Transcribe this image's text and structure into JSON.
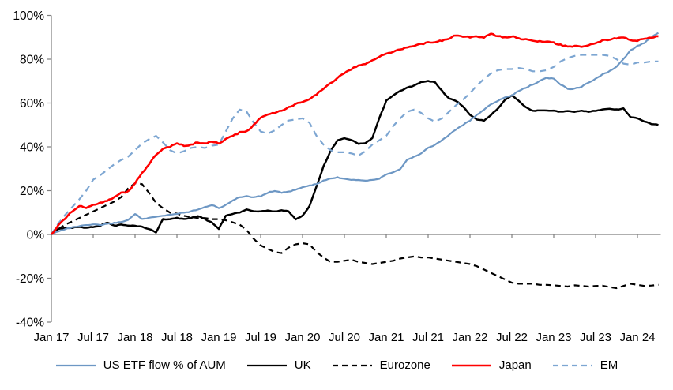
{
  "chart_data": {
    "type": "line",
    "title": "",
    "grid": false,
    "legend_position": "bottom",
    "axis_color": "#7f7f7f",
    "text_color": "#000000",
    "x_axis": {
      "tick_labels": [
        "Jan 17",
        "Jul 17",
        "Jan 18",
        "Jul 18",
        "Jan 19",
        "Jul 19",
        "Jan 20",
        "Jul 20",
        "Jan 21",
        "Jul 21",
        "Jan 22",
        "Jul 22",
        "Jan 23",
        "Jul 23",
        "Jan 24"
      ],
      "months_per_tick": 6,
      "months_total": 88
    },
    "y_axis": {
      "tick_labels": [
        "100%",
        "80%",
        "60%",
        "40%",
        "20%",
        "0%",
        "-20%",
        "-40%"
      ],
      "min": -40,
      "max": 100,
      "step": 20,
      "unit": "%"
    },
    "series": [
      {
        "id": "eurozone",
        "name": "Eurozone",
        "color": "#000000",
        "style": "dashed",
        "values": [
          0,
          2.5,
          4.5,
          6,
          7.5,
          9,
          10.5,
          12,
          13.5,
          15,
          17,
          21,
          23.4,
          23,
          19,
          14.5,
          12,
          10,
          9.5,
          8.5,
          8,
          7.5,
          7.5,
          7,
          7,
          6.5,
          5.5,
          4.5,
          2,
          -2,
          -5,
          -6.5,
          -8,
          -8.5,
          -6,
          -4.5,
          -4,
          -4.5,
          -8,
          -10.5,
          -12.5,
          -12.5,
          -12,
          -11.5,
          -12.5,
          -13,
          -13.5,
          -13,
          -12.5,
          -12,
          -11,
          -10.5,
          -10,
          -10.5,
          -10.5,
          -11,
          -11.5,
          -12,
          -12.5,
          -13,
          -13.5,
          -14.5,
          -16,
          -17.5,
          -19,
          -20.5,
          -22,
          -22.5,
          -22.5,
          -22.5,
          -23,
          -23,
          -23.2,
          -23.5,
          -23.8,
          -23.2,
          -23.5,
          -23.8,
          -23.5,
          -23.4,
          -24,
          -24.5,
          -23.5,
          -22.5,
          -23,
          -23.5,
          -23.3,
          -23
        ]
      },
      {
        "id": "uk",
        "name": "UK",
        "color": "#000000",
        "style": "solid",
        "values": [
          0,
          2.5,
          3,
          3,
          3.5,
          3,
          3.5,
          4,
          5.5,
          4,
          4.5,
          4,
          4,
          3.5,
          2.5,
          1,
          7,
          7,
          7.5,
          7,
          7.5,
          8.5,
          7,
          5.5,
          2.5,
          8.5,
          9.5,
          10,
          11.5,
          10.5,
          10.5,
          11,
          10.5,
          11,
          10.5,
          7,
          8.5,
          13,
          22,
          31,
          38,
          43,
          44,
          43,
          41.5,
          41.5,
          44,
          53,
          61,
          63.5,
          65.5,
          67,
          68,
          69.5,
          70,
          69.5,
          65.5,
          62,
          61,
          58.5,
          54.5,
          52.5,
          52,
          54.5,
          57.5,
          61.5,
          63.5,
          61,
          58,
          56.5,
          56.5,
          56.5,
          56.5,
          56,
          56.5,
          56,
          56.5,
          56,
          56.5,
          57,
          57.5,
          57,
          57.5,
          53.5,
          53,
          51.5,
          50.5,
          50
        ]
      },
      {
        "id": "em",
        "name": "EM",
        "color": "#7da6d2",
        "style": "dashed",
        "values": [
          0,
          5,
          9,
          12.5,
          16,
          20,
          25,
          27,
          29.5,
          32,
          34,
          35.5,
          38.5,
          41.5,
          43.5,
          45,
          42,
          38.5,
          37,
          38,
          39.5,
          40,
          39.5,
          40.5,
          41,
          47,
          53,
          57,
          56,
          51,
          47,
          46,
          47.5,
          50,
          52,
          52.5,
          53,
          51,
          45,
          41,
          38.5,
          37.5,
          37.5,
          37,
          36,
          38,
          41,
          43,
          45,
          49.5,
          53,
          56,
          57,
          55.5,
          53,
          51.5,
          53,
          56,
          59,
          61.5,
          64.5,
          68,
          71,
          73.5,
          75,
          75.5,
          75.5,
          76,
          75.5,
          74.5,
          74.5,
          75,
          76.5,
          79,
          80.5,
          81.5,
          82,
          82,
          82,
          82,
          81.5,
          80,
          78,
          77.5,
          78.5,
          78.5,
          79,
          79
        ]
      },
      {
        "id": "us",
        "name": "US ETF flow % of AUM",
        "color": "#6d97c4",
        "style": "solid",
        "values": [
          0,
          1.5,
          2.5,
          3.2,
          3.8,
          4.2,
          4.5,
          4.3,
          4.8,
          5.2,
          5.8,
          6.5,
          9.5,
          7,
          7.5,
          8,
          8.5,
          9,
          9.5,
          10,
          10.5,
          11.5,
          12.5,
          13.5,
          12,
          13.5,
          15.5,
          17,
          17.5,
          17,
          17.5,
          19,
          20,
          19,
          19.5,
          20.5,
          21.5,
          22.3,
          23,
          24.5,
          25.5,
          26,
          25.5,
          25,
          25,
          24.5,
          25,
          25.5,
          27.5,
          28.5,
          30,
          34,
          35.5,
          37,
          39.5,
          41,
          43,
          45.5,
          48,
          50,
          52,
          54.5,
          57,
          59.5,
          61,
          62.5,
          63.5,
          65.5,
          67,
          68.5,
          70,
          71.5,
          71,
          68.5,
          66.5,
          66.5,
          67.5,
          69.5,
          71,
          73,
          74.5,
          76.5,
          80,
          84,
          86,
          87.5,
          90,
          92
        ]
      },
      {
        "id": "japan",
        "name": "Japan",
        "color": "#ff0000",
        "style": "solid",
        "values": [
          0,
          4,
          7.5,
          10.5,
          13,
          12,
          13.5,
          14.5,
          15.5,
          17,
          19,
          19.5,
          23.5,
          28,
          32,
          36.5,
          39,
          40,
          41.5,
          40.5,
          41,
          42,
          41.5,
          42.5,
          41.5,
          43.5,
          45,
          46.5,
          47,
          50,
          53.5,
          54.5,
          55.5,
          56.5,
          58,
          59.5,
          60.5,
          62,
          64,
          66.5,
          69,
          71.5,
          73.5,
          75.5,
          77,
          78,
          79.5,
          81,
          82.5,
          83.5,
          84.5,
          85.5,
          86,
          87,
          87.5,
          88,
          88.5,
          89.5,
          91,
          90.5,
          90,
          90.5,
          90,
          91.5,
          90.5,
          90,
          90.5,
          89.5,
          89,
          88.5,
          88,
          88,
          87.5,
          86.5,
          85.8,
          86,
          85.8,
          86.5,
          87.5,
          88.5,
          89,
          89.5,
          90,
          88.5,
          88.5,
          89.5,
          90,
          90.5
        ]
      }
    ],
    "legend_order": [
      "us",
      "uk",
      "eurozone",
      "japan",
      "em"
    ]
  }
}
